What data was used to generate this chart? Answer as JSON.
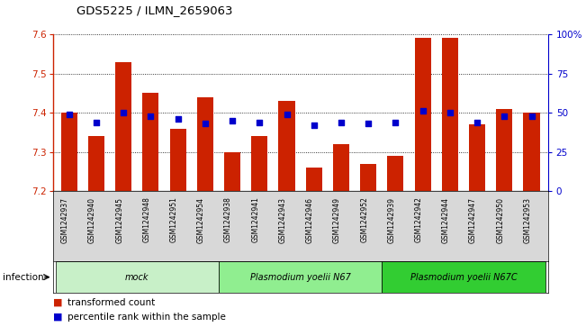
{
  "title": "GDS5225 / ILMN_2659063",
  "samples": [
    "GSM1242937",
    "GSM1242940",
    "GSM1242945",
    "GSM1242948",
    "GSM1242951",
    "GSM1242954",
    "GSM1242938",
    "GSM1242941",
    "GSM1242943",
    "GSM1242946",
    "GSM1242949",
    "GSM1242952",
    "GSM1242939",
    "GSM1242942",
    "GSM1242944",
    "GSM1242947",
    "GSM1242950",
    "GSM1242953"
  ],
  "bar_values": [
    7.4,
    7.34,
    7.53,
    7.45,
    7.36,
    7.44,
    7.3,
    7.34,
    7.43,
    7.26,
    7.32,
    7.27,
    7.29,
    7.59,
    7.59,
    7.37,
    7.41,
    7.4
  ],
  "percentile_values": [
    49,
    44,
    50,
    48,
    46,
    43,
    45,
    44,
    49,
    42,
    44,
    43,
    44,
    51,
    50,
    44,
    48,
    48
  ],
  "ylim_left": [
    7.2,
    7.6
  ],
  "ylim_right": [
    0,
    100
  ],
  "yticks_left": [
    7.2,
    7.3,
    7.4,
    7.5,
    7.6
  ],
  "yticks_right": [
    0,
    25,
    50,
    75,
    100
  ],
  "ytick_labels_right": [
    "0",
    "25",
    "50",
    "75",
    "100%"
  ],
  "groups": [
    {
      "label": "mock",
      "start": 0,
      "end": 6
    },
    {
      "label": "Plasmodium yoelii N67",
      "start": 6,
      "end": 12
    },
    {
      "label": "Plasmodium yoelii N67C",
      "start": 12,
      "end": 18
    }
  ],
  "group_colors": [
    "#c8f0c8",
    "#90ee90",
    "#32cd32"
  ],
  "bar_color": "#cc2200",
  "dot_color": "#0000cc",
  "bar_bottom": 7.2,
  "legend_items": [
    {
      "color": "#cc2200",
      "label": "transformed count"
    },
    {
      "color": "#0000cc",
      "label": "percentile rank within the sample"
    }
  ],
  "left_axis_color": "#cc2200",
  "right_axis_color": "#0000cc",
  "label_bg_color": "#d8d8d8"
}
